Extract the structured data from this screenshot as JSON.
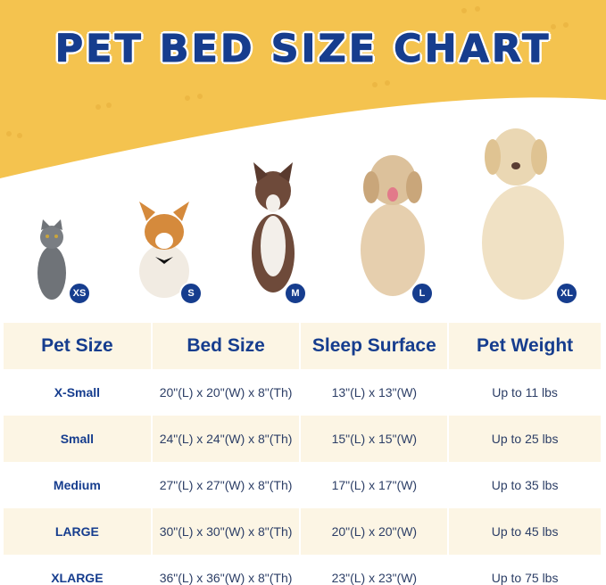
{
  "title": "PET BED SIZE CHART",
  "colors": {
    "brand_blue": "#163d8e",
    "banner_yellow": "#f4c34f",
    "row_cream": "#fcf5e4"
  },
  "pets": [
    {
      "animal": "cat",
      "badge": "XS"
    },
    {
      "animal": "corgi",
      "badge": "S"
    },
    {
      "animal": "border-collie",
      "badge": "M"
    },
    {
      "animal": "golden-retriever",
      "badge": "L"
    },
    {
      "animal": "labrador",
      "badge": "XL"
    }
  ],
  "table": {
    "headers": [
      "Pet Size",
      "Bed Size",
      "Sleep Surface",
      "Pet Weight"
    ],
    "rows": [
      [
        "X-Small",
        "20\"(L) x 20\"(W) x 8\"(Th)",
        "13\"(L) x 13\"(W)",
        "Up to 11 lbs"
      ],
      [
        "Small",
        "24\"(L) x 24\"(W) x 8\"(Th)",
        "15\"(L) x 15\"(W)",
        "Up to 25 lbs"
      ],
      [
        "Medium",
        "27\"(L) x 27\"(W) x 8\"(Th)",
        "17\"(L) x 17\"(W)",
        "Up to 35 lbs"
      ],
      [
        "LARGE",
        "30\"(L) x 30\"(W) x 8\"(Th)",
        "20\"(L) x 20\"(W)",
        "Up to 45 lbs"
      ],
      [
        "XLARGE",
        "36\"(L) x 36\"(W) x 8\"(Th)",
        "23\"(L) x 23\"(W)",
        "Up to 75 lbs"
      ]
    ]
  }
}
